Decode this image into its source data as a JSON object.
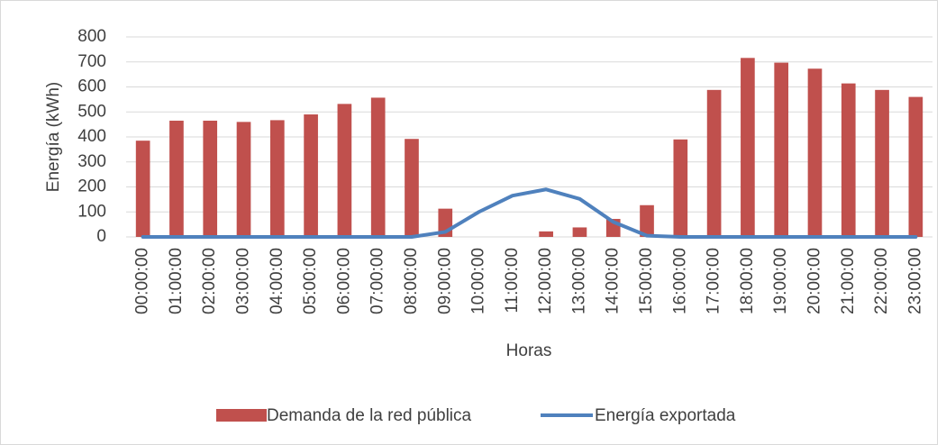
{
  "chart_data": {
    "type": "bar_line",
    "x_label": "Horas",
    "y_label": "Energía (kWh)",
    "categories": [
      "00:00:00",
      "01:00:00",
      "02:00:00",
      "03:00:00",
      "04:00:00",
      "05:00:00",
      "06:00:00",
      "07:00:00",
      "08:00:00",
      "09:00:00",
      "10:00:00",
      "11:00:00",
      "12:00:00",
      "13:00:00",
      "14:00:00",
      "15:00:00",
      "16:00:00",
      "17:00:00",
      "18:00:00",
      "19:00:00",
      "20:00:00",
      "21:00:00",
      "22:00:00",
      "23:00:00"
    ],
    "series": [
      {
        "name": "Demanda de la red pública",
        "type": "bar",
        "color": "#c0504d",
        "values": [
          385,
          465,
          465,
          460,
          467,
          490,
          532,
          557,
          392,
          113,
          0,
          0,
          22,
          38,
          72,
          127,
          390,
          588,
          716,
          697,
          673,
          614,
          588,
          560
        ]
      },
      {
        "name": "Energía exportada",
        "type": "line",
        "color": "#4f81bd",
        "values": [
          0,
          0,
          0,
          0,
          0,
          0,
          0,
          0,
          0,
          20,
          100,
          165,
          190,
          152,
          60,
          5,
          0,
          0,
          0,
          0,
          0,
          0,
          0,
          0
        ]
      }
    ],
    "ylim": [
      0,
      800
    ],
    "yticks": [
      0,
      100,
      200,
      300,
      400,
      500,
      600,
      700,
      800
    ],
    "grid": true,
    "legend": "bottom"
  }
}
